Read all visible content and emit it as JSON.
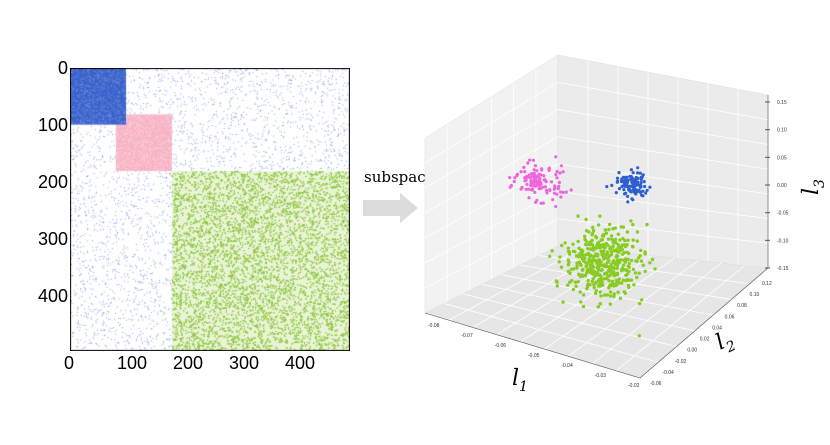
{
  "left_panel": {
    "x_ticks": [
      "0",
      "100",
      "200",
      "300",
      "400"
    ],
    "y_ticks": [
      "0",
      "100",
      "200",
      "300",
      "400"
    ],
    "blocks": [
      {
        "name": "blue-block",
        "range": [
          0,
          100
        ],
        "color": "#3b63cc"
      },
      {
        "name": "pink-block",
        "range": [
          82,
          182
        ],
        "color": "#f7b3c3"
      },
      {
        "name": "green-block",
        "range": [
          182,
          500
        ],
        "color": "#8ec63f"
      }
    ]
  },
  "arrow": {
    "label": "subspace",
    "color": "#dcdcdc"
  },
  "right_panel": {
    "clusters": [
      {
        "name": "pink-cluster",
        "color": "#ee66dd"
      },
      {
        "name": "blue-cluster",
        "color": "#2e5fcf"
      },
      {
        "name": "green-cluster",
        "color": "#88cc22"
      }
    ],
    "axis_labels": {
      "l1": "l",
      "l1_sub": "1",
      "l2": "l",
      "l2_sub": "2",
      "l3": "l",
      "l3_sub": "3"
    },
    "l1_ticks": [
      "-0.08",
      "-0.07",
      "-0.06",
      "-0.05",
      "-0.04",
      "-0.03",
      "-0.02"
    ],
    "l2_ticks": [
      "-0.06",
      "-0.04",
      "-0.02",
      "0.00",
      "0.02",
      "0.04",
      "0.06",
      "0.08",
      "0.10",
      "0.12"
    ],
    "l3_ticks": [
      "0.15",
      "0.10",
      "0.05",
      "0.00",
      "-0.05",
      "-0.10",
      "-0.15"
    ]
  }
}
